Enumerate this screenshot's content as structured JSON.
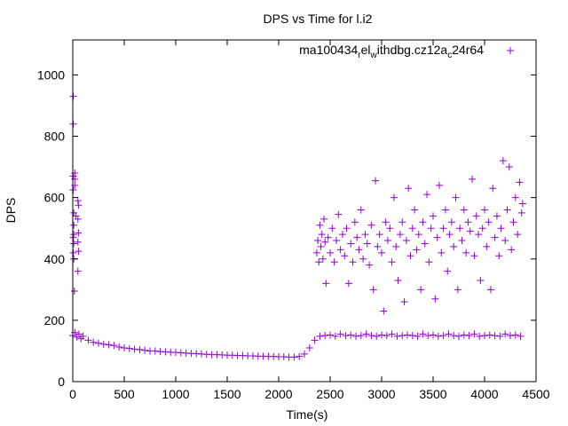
{
  "chart_data": {
    "type": "scatter",
    "title": "DPS vs Time for l.i2",
    "xlabel": "Time(s)",
    "ylabel": "DPS",
    "xlim": [
      0,
      4500
    ],
    "ylim": [
      0,
      1114
    ],
    "xticks": [
      "0",
      "500",
      "1000",
      "1500",
      "2000",
      "2500",
      "3000",
      "3500",
      "4000",
      "4500"
    ],
    "yticks": [
      "0",
      "200",
      "400",
      "600",
      "800",
      "1000"
    ],
    "grid": false,
    "legend_position": "top-right",
    "series": [
      {
        "name": "ma100434_rel_withdbg.cz12a_c24r64",
        "color": "#9400d3",
        "marker": "plus",
        "points": [
          [
            5,
            930
          ],
          [
            5,
            840
          ],
          [
            5,
            670
          ],
          [
            5,
            625
          ],
          [
            5,
            470
          ],
          [
            5,
            420
          ],
          [
            10,
            550
          ],
          [
            10,
            510
          ],
          [
            10,
            480
          ],
          [
            10,
            450
          ],
          [
            10,
            400
          ],
          [
            15,
            295
          ],
          [
            20,
            680
          ],
          [
            20,
            660
          ],
          [
            20,
            640
          ],
          [
            30,
            540
          ],
          [
            50,
            590
          ],
          [
            55,
            575
          ],
          [
            50,
            530
          ],
          [
            55,
            485
          ],
          [
            50,
            455
          ],
          [
            55,
            425
          ],
          [
            50,
            360
          ],
          [
            0,
            150
          ],
          [
            20,
            160
          ],
          [
            40,
            145
          ],
          [
            60,
            155
          ],
          [
            80,
            140
          ],
          [
            100,
            148
          ],
          [
            150,
            135
          ],
          [
            200,
            128
          ],
          [
            250,
            125
          ],
          [
            300,
            122
          ],
          [
            350,
            120
          ],
          [
            400,
            118
          ],
          [
            450,
            113
          ],
          [
            500,
            110
          ],
          [
            550,
            108
          ],
          [
            600,
            106
          ],
          [
            650,
            104
          ],
          [
            700,
            102
          ],
          [
            750,
            100
          ],
          [
            800,
            100
          ],
          [
            850,
            98
          ],
          [
            900,
            97
          ],
          [
            950,
            96
          ],
          [
            1000,
            95
          ],
          [
            1050,
            94
          ],
          [
            1100,
            93
          ],
          [
            1150,
            92
          ],
          [
            1200,
            91
          ],
          [
            1250,
            90
          ],
          [
            1300,
            89
          ],
          [
            1350,
            88
          ],
          [
            1400,
            88
          ],
          [
            1450,
            87
          ],
          [
            1500,
            86
          ],
          [
            1550,
            86
          ],
          [
            1600,
            85
          ],
          [
            1650,
            85
          ],
          [
            1700,
            84
          ],
          [
            1750,
            84
          ],
          [
            1800,
            83
          ],
          [
            1850,
            83
          ],
          [
            1900,
            82
          ],
          [
            1950,
            82
          ],
          [
            2000,
            81
          ],
          [
            2050,
            81
          ],
          [
            2100,
            80
          ],
          [
            2150,
            80
          ],
          [
            2200,
            82
          ],
          [
            2250,
            90
          ],
          [
            2300,
            110
          ],
          [
            2350,
            135
          ],
          [
            2400,
            148
          ],
          [
            2450,
            150
          ],
          [
            2500,
            152
          ],
          [
            2550,
            148
          ],
          [
            2600,
            155
          ],
          [
            2650,
            150
          ],
          [
            2700,
            152
          ],
          [
            2750,
            148
          ],
          [
            2800,
            150
          ],
          [
            2850,
            155
          ],
          [
            2900,
            150
          ],
          [
            2950,
            148
          ],
          [
            3000,
            152
          ],
          [
            3050,
            150
          ],
          [
            3100,
            155
          ],
          [
            3150,
            148
          ],
          [
            3200,
            150
          ],
          [
            3250,
            152
          ],
          [
            3300,
            150
          ],
          [
            3350,
            148
          ],
          [
            3400,
            155
          ],
          [
            3450,
            150
          ],
          [
            3500,
            152
          ],
          [
            3550,
            148
          ],
          [
            3600,
            150
          ],
          [
            3650,
            155
          ],
          [
            3700,
            150
          ],
          [
            3750,
            148
          ],
          [
            3800,
            152
          ],
          [
            3850,
            150
          ],
          [
            3900,
            155
          ],
          [
            3950,
            148
          ],
          [
            4000,
            150
          ],
          [
            4050,
            152
          ],
          [
            4100,
            150
          ],
          [
            4150,
            148
          ],
          [
            4200,
            155
          ],
          [
            4250,
            150
          ],
          [
            4300,
            152
          ],
          [
            4350,
            148
          ],
          [
            2370,
            420
          ],
          [
            2380,
            460
          ],
          [
            2390,
            390
          ],
          [
            2400,
            510
          ],
          [
            2410,
            440
          ],
          [
            2420,
            480
          ],
          [
            2430,
            400
          ],
          [
            2440,
            530
          ],
          [
            2450,
            455
          ],
          [
            2460,
            320
          ],
          [
            2480,
            470
          ],
          [
            2500,
            420
          ],
          [
            2520,
            500
          ],
          [
            2540,
            390
          ],
          [
            2560,
            460
          ],
          [
            2580,
            545
          ],
          [
            2600,
            430
          ],
          [
            2620,
            480
          ],
          [
            2640,
            410
          ],
          [
            2660,
            500
          ],
          [
            2680,
            320
          ],
          [
            2700,
            450
          ],
          [
            2720,
            390
          ],
          [
            2740,
            520
          ],
          [
            2760,
            470
          ],
          [
            2780,
            430
          ],
          [
            2800,
            560
          ],
          [
            2820,
            400
          ],
          [
            2840,
            480
          ],
          [
            2860,
            450
          ],
          [
            2880,
            380
          ],
          [
            2900,
            510
          ],
          [
            2920,
            300
          ],
          [
            2940,
            655
          ],
          [
            2960,
            440
          ],
          [
            2980,
            480
          ],
          [
            3000,
            420
          ],
          [
            3020,
            230
          ],
          [
            3040,
            520
          ],
          [
            3060,
            460
          ],
          [
            3080,
            500
          ],
          [
            3100,
            390
          ],
          [
            3120,
            600
          ],
          [
            3140,
            440
          ],
          [
            3160,
            330
          ],
          [
            3180,
            480
          ],
          [
            3200,
            520
          ],
          [
            3220,
            260
          ],
          [
            3240,
            460
          ],
          [
            3260,
            630
          ],
          [
            3280,
            410
          ],
          [
            3300,
            500
          ],
          [
            3320,
            560
          ],
          [
            3340,
            430
          ],
          [
            3360,
            480
          ],
          [
            3380,
            300
          ],
          [
            3400,
            520
          ],
          [
            3420,
            450
          ],
          [
            3440,
            610
          ],
          [
            3460,
            390
          ],
          [
            3480,
            500
          ],
          [
            3500,
            540
          ],
          [
            3520,
            270
          ],
          [
            3540,
            470
          ],
          [
            3560,
            640
          ],
          [
            3580,
            420
          ],
          [
            3600,
            500
          ],
          [
            3620,
            560
          ],
          [
            3640,
            360
          ],
          [
            3660,
            480
          ],
          [
            3680,
            520
          ],
          [
            3700,
            440
          ],
          [
            3720,
            600
          ],
          [
            3740,
            300
          ],
          [
            3760,
            500
          ],
          [
            3780,
            460
          ],
          [
            3800,
            560
          ],
          [
            3820,
            420
          ],
          [
            3840,
            520
          ],
          [
            3860,
            490
          ],
          [
            3880,
            660
          ],
          [
            3900,
            410
          ],
          [
            3920,
            540
          ],
          [
            3940,
            480
          ],
          [
            3960,
            330
          ],
          [
            3980,
            500
          ],
          [
            4000,
            560
          ],
          [
            4020,
            440
          ],
          [
            4040,
            520
          ],
          [
            4060,
            300
          ],
          [
            4080,
            630
          ],
          [
            4100,
            470
          ],
          [
            4120,
            540
          ],
          [
            4140,
            410
          ],
          [
            4160,
            500
          ],
          [
            4180,
            720
          ],
          [
            4200,
            460
          ],
          [
            4220,
            560
          ],
          [
            4240,
            700
          ],
          [
            4260,
            430
          ],
          [
            4280,
            520
          ],
          [
            4300,
            600
          ],
          [
            4320,
            480
          ],
          [
            4340,
            650
          ],
          [
            4360,
            550
          ],
          [
            4370,
            580
          ]
        ]
      }
    ]
  }
}
